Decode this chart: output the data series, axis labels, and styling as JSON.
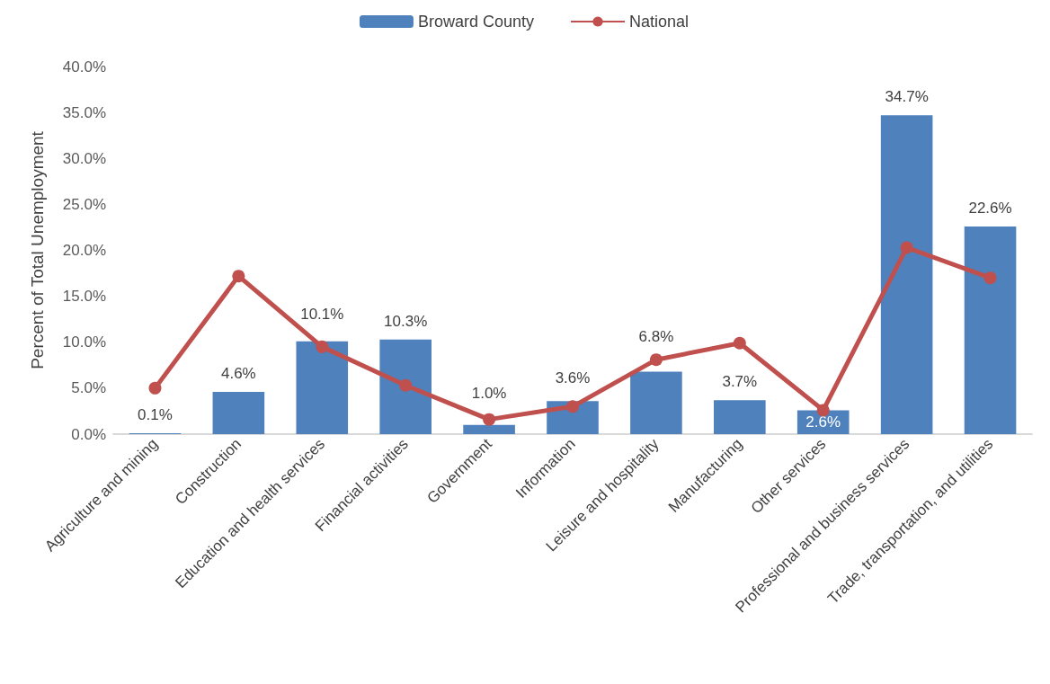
{
  "chart_data": {
    "type": "bar",
    "ylabel": "Percent of Total Unemployment",
    "categories": [
      "Agriculture and mining",
      "Construction",
      "Education and health services",
      "Financial activities",
      "Government",
      "Information",
      "Leisure and hospitality",
      "Manufacturing",
      "Other services",
      "Professional and business services",
      "Trade, transportation, and utilities"
    ],
    "series": [
      {
        "name": "Broward County",
        "color": "#4f81bd",
        "values": [
          0.1,
          4.6,
          10.1,
          10.3,
          1.0,
          3.6,
          6.8,
          3.7,
          2.6,
          34.7,
          22.6
        ],
        "value_labels": [
          "0.1%",
          "4.6%",
          "10.1%",
          "10.3%",
          "1.0%",
          "3.6%",
          "6.8%",
          "3.7%",
          "2.6%",
          "34.7%",
          "22.6%"
        ]
      },
      {
        "name": "National",
        "type": "line",
        "color": "#c0504d",
        "values": [
          5.0,
          17.2,
          9.5,
          5.3,
          1.6,
          3.0,
          8.1,
          9.9,
          2.6,
          20.3,
          17.0
        ]
      }
    ],
    "ylim": [
      0,
      40
    ],
    "yticks": [
      {
        "value": 0,
        "label": "0.0%"
      },
      {
        "value": 5,
        "label": "5.0%"
      },
      {
        "value": 10,
        "label": "10.0%"
      },
      {
        "value": 15,
        "label": "15.0%"
      },
      {
        "value": 20,
        "label": "20.0%"
      },
      {
        "value": 25,
        "label": "25.0%"
      },
      {
        "value": 30,
        "label": "30.0%"
      },
      {
        "value": 35,
        "label": "35.0%"
      },
      {
        "value": 40,
        "label": "40.0%"
      }
    ],
    "grid": false,
    "legend": "top",
    "marker": "circle",
    "line_style": "solid"
  }
}
